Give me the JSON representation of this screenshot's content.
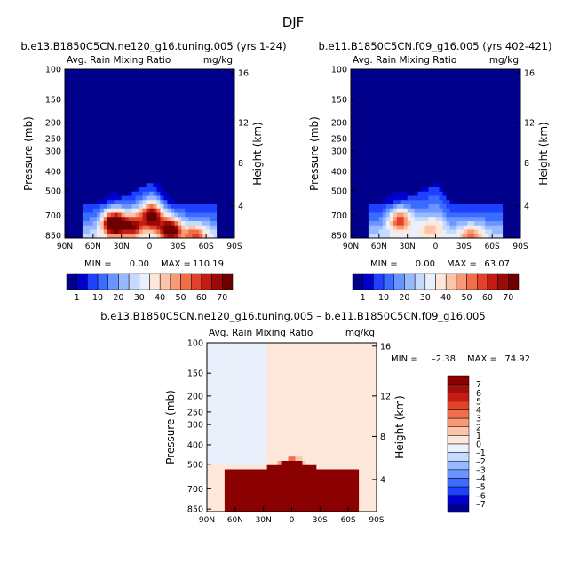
{
  "page_title": "DJF",
  "chart_data": [
    {
      "type": "heatmap",
      "title": "b.e13.B1850C5CN.ne120_g16.tuning.005 (yrs 1-24)",
      "subtitle_left": "Avg. Rain Mixing Ratio",
      "subtitle_right": "mg/kg",
      "xlabel": "",
      "ylabel": "Pressure (mb)",
      "ylabel_right": "Height (km)",
      "x_ticks": [
        "90N",
        "60N",
        "30N",
        "0",
        "30S",
        "60S",
        "90S"
      ],
      "y_ticks": [
        "100",
        "150",
        "200",
        "250",
        "300",
        "400",
        "500",
        "700",
        "850"
      ],
      "y_ticks_right": [
        "16",
        "12",
        "8",
        "4"
      ],
      "min_label": "MIN =",
      "min_value": "0.00",
      "max_label": "MAX =",
      "max_value": "110.19",
      "colorbar_ticks": [
        "1",
        "10",
        "20",
        "30",
        "40",
        "50",
        "60",
        "70"
      ],
      "colorbar_colors": [
        "#00008b",
        "#0000cd",
        "#1e40ff",
        "#3a6cff",
        "#6a94ff",
        "#98b8ff",
        "#c6d9ff",
        "#eaf0fb",
        "#fde6da",
        "#fcc4a8",
        "#f99a76",
        "#f26d4a",
        "#e2412a",
        "#c41c14",
        "#9b0a08",
        "#6e0000"
      ],
      "blobs": [
        {
          "lat": -3,
          "p": 650,
          "amp": 55
        },
        {
          "lat": -22,
          "p": 780,
          "amp": 60
        },
        {
          "lat": 38,
          "p": 720,
          "amp": 75
        },
        {
          "lat": 18,
          "p": 740,
          "amp": 40
        },
        {
          "lat": -48,
          "p": 830,
          "amp": 30
        }
      ]
    },
    {
      "type": "heatmap",
      "title": "b.e11.B1850C5CN.f09_g16.005 (yrs 402-421)",
      "subtitle_left": "Avg. Rain Mixing Ratio",
      "subtitle_right": "mg/kg",
      "xlabel": "",
      "ylabel": "Pressure (mb)",
      "ylabel_right": "Height (km)",
      "x_ticks": [
        "90N",
        "60N",
        "30N",
        "0",
        "30S",
        "60S",
        "90S"
      ],
      "y_ticks": [
        "100",
        "150",
        "200",
        "250",
        "300",
        "400",
        "500",
        "700",
        "850"
      ],
      "y_ticks_right": [
        "16",
        "12",
        "8",
        "4"
      ],
      "min_label": "MIN =",
      "min_value": "0.00",
      "max_label": "MAX =",
      "max_value": "63.07",
      "colorbar_ticks": [
        "1",
        "10",
        "20",
        "30",
        "40",
        "50",
        "60",
        "70"
      ],
      "colorbar_colors": [
        "#00008b",
        "#0000cd",
        "#1e40ff",
        "#3a6cff",
        "#6a94ff",
        "#98b8ff",
        "#c6d9ff",
        "#eaf0fb",
        "#fde6da",
        "#fcc4a8",
        "#f99a76",
        "#f26d4a",
        "#e2412a",
        "#c41c14",
        "#9b0a08",
        "#6e0000"
      ],
      "blobs": [
        {
          "lat": 38,
          "p": 690,
          "amp": 42
        },
        {
          "lat": -38,
          "p": 830,
          "amp": 25
        },
        {
          "lat": 5,
          "p": 780,
          "amp": 15
        }
      ]
    },
    {
      "type": "heatmap",
      "title": "b.e13.B1850C5CN.ne120_g16.tuning.005 – b.e11.B1850C5CN.f09_g16.005",
      "subtitle_left": "Avg. Rain Mixing Ratio",
      "subtitle_right": "mg/kg",
      "xlabel": "",
      "ylabel": "Pressure (mb)",
      "ylabel_right": "Height (km)",
      "x_ticks": [
        "90N",
        "60N",
        "30N",
        "0",
        "30S",
        "60S",
        "90S"
      ],
      "y_ticks": [
        "100",
        "150",
        "200",
        "250",
        "300",
        "400",
        "500",
        "700",
        "850"
      ],
      "y_ticks_right": [
        "16",
        "12",
        "8",
        "4"
      ],
      "min_label": "MIN =",
      "min_value": "–2.38",
      "max_label": "MAX =",
      "max_value": "74.92",
      "colorbar_ticks": [
        "7",
        "6",
        "5",
        "4",
        "3",
        "2",
        "1",
        "0",
        "–1",
        "–2",
        "–3",
        "–4",
        "–5",
        "–6",
        "–7"
      ],
      "colorbar_colors": [
        "#8b0000",
        "#a50f0a",
        "#c41c14",
        "#e2412a",
        "#f26d4a",
        "#f99a76",
        "#fcc4a8",
        "#fde6da",
        "#eaf0fb",
        "#c6d9ff",
        "#98b8ff",
        "#6a94ff",
        "#3a6cff",
        "#1e40ff",
        "#0000cd",
        "#00008b"
      ]
    }
  ]
}
